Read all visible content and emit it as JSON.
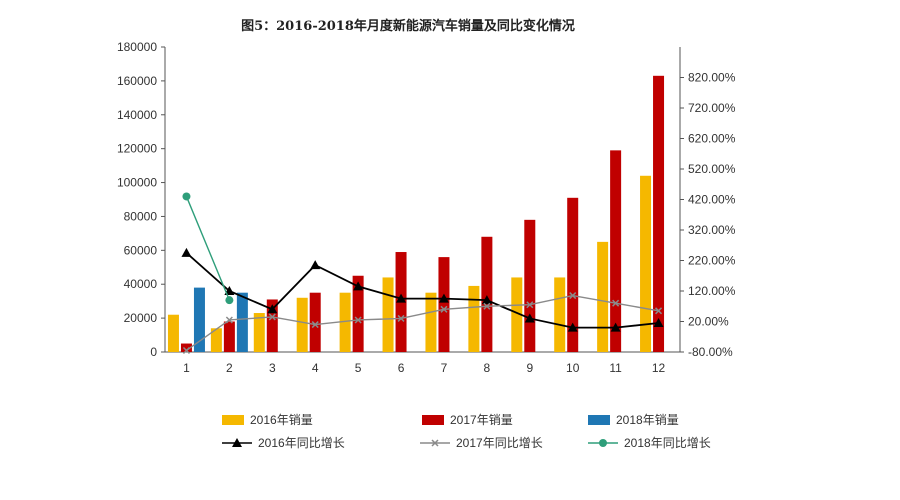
{
  "chart_data": {
    "type": "bar",
    "title": "图5：2016-2018年月度新能源汽车销量及同比变化情况",
    "categories": [
      "1",
      "2",
      "3",
      "4",
      "5",
      "6",
      "7",
      "8",
      "9",
      "10",
      "11",
      "12"
    ],
    "left_axis": {
      "ylim": [
        0,
        180000
      ],
      "ticks": [
        "0",
        "20000",
        "40000",
        "60000",
        "80000",
        "100000",
        "120000",
        "140000",
        "160000",
        "180000"
      ]
    },
    "right_axis": {
      "ylim": [
        -80,
        920
      ],
      "ticks": [
        "-80.00%",
        "20.00%",
        "120.00%",
        "220.00%",
        "320.00%",
        "420.00%",
        "520.00%",
        "620.00%",
        "720.00%",
        "820.00%"
      ]
    },
    "bar_series": [
      {
        "name": "2016年销量",
        "color": "#f5b800",
        "values": [
          22000,
          14000,
          23000,
          32000,
          35000,
          44000,
          35000,
          39000,
          44000,
          44000,
          65000,
          104000
        ]
      },
      {
        "name": "2017年销量",
        "color": "#c00000",
        "values": [
          5000,
          18000,
          31000,
          35000,
          45000,
          59000,
          56000,
          68000,
          78000,
          91000,
          119000,
          163000
        ]
      },
      {
        "name": "2018年销量",
        "color": "#1f77b4",
        "values": [
          38000,
          35000,
          null,
          null,
          null,
          null,
          null,
          null,
          null,
          null,
          null,
          null
        ]
      }
    ],
    "line_series": [
      {
        "name": "2016年同比增长",
        "color": "#000000",
        "marker": "triangle",
        "values": [
          245,
          120,
          60,
          205,
          135,
          95,
          95,
          90,
          30,
          0,
          0,
          15
        ]
      },
      {
        "name": "2017年同比增长",
        "color": "#8a8a8a",
        "marker": "x",
        "values": [
          -75,
          25,
          35,
          10,
          25,
          30,
          60,
          70,
          75,
          105,
          80,
          55
        ]
      },
      {
        "name": "2018年同比增长",
        "color": "#2e9e7a",
        "marker": "circle",
        "values": [
          430,
          90,
          null,
          null,
          null,
          null,
          null,
          null,
          null,
          null,
          null,
          null
        ]
      }
    ],
    "legend_position": "bottom"
  }
}
